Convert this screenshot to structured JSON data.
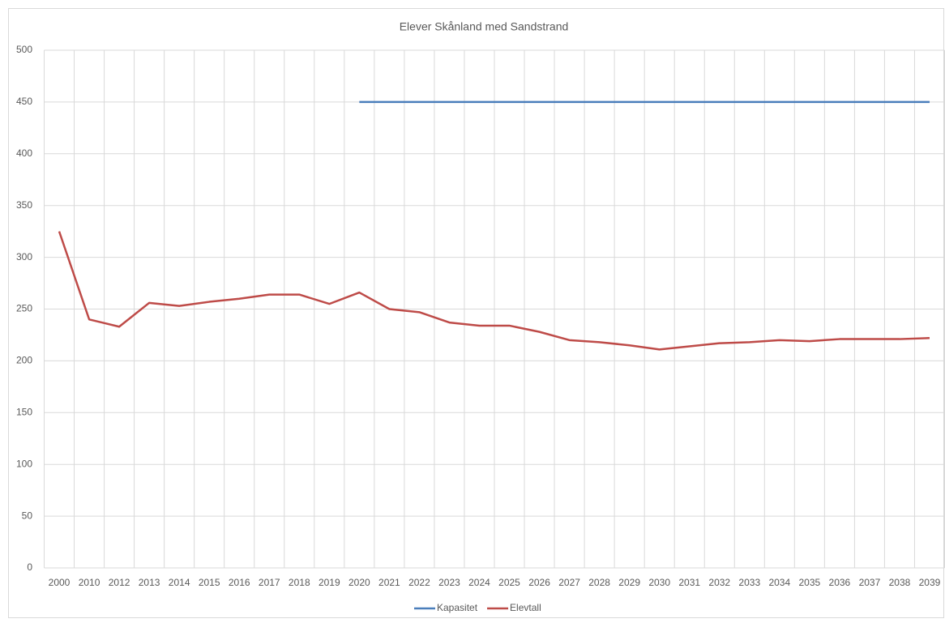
{
  "chart_data": {
    "type": "line",
    "title": "Elever Skånland med Sandstrand",
    "categories": [
      "2000",
      "2010",
      "2012",
      "2013",
      "2014",
      "2015",
      "2016",
      "2017",
      "2018",
      "2019",
      "2020",
      "2021",
      "2022",
      "2023",
      "2024",
      "2025",
      "2026",
      "2027",
      "2028",
      "2029",
      "2030",
      "2031",
      "2032",
      "2033",
      "2034",
      "2035",
      "2036",
      "2037",
      "2038",
      "2039"
    ],
    "series": [
      {
        "name": "Kapasitet",
        "color": "#4a7ebb",
        "values": [
          null,
          null,
          null,
          null,
          null,
          null,
          null,
          null,
          null,
          null,
          450,
          450,
          450,
          450,
          450,
          450,
          450,
          450,
          450,
          450,
          450,
          450,
          450,
          450,
          450,
          450,
          450,
          450,
          450,
          450
        ]
      },
      {
        "name": "Elevtall",
        "color": "#be4b48",
        "values": [
          325,
          240,
          233,
          256,
          253,
          257,
          260,
          264,
          264,
          255,
          266,
          250,
          247,
          237,
          234,
          234,
          228,
          220,
          218,
          215,
          211,
          214,
          217,
          218,
          220,
          219,
          221,
          221,
          221,
          222
        ]
      }
    ],
    "ylim": [
      0,
      500
    ],
    "yticks": [
      0,
      50,
      100,
      150,
      200,
      250,
      300,
      350,
      400,
      450,
      500
    ],
    "grid": true,
    "legend": "bottom"
  }
}
